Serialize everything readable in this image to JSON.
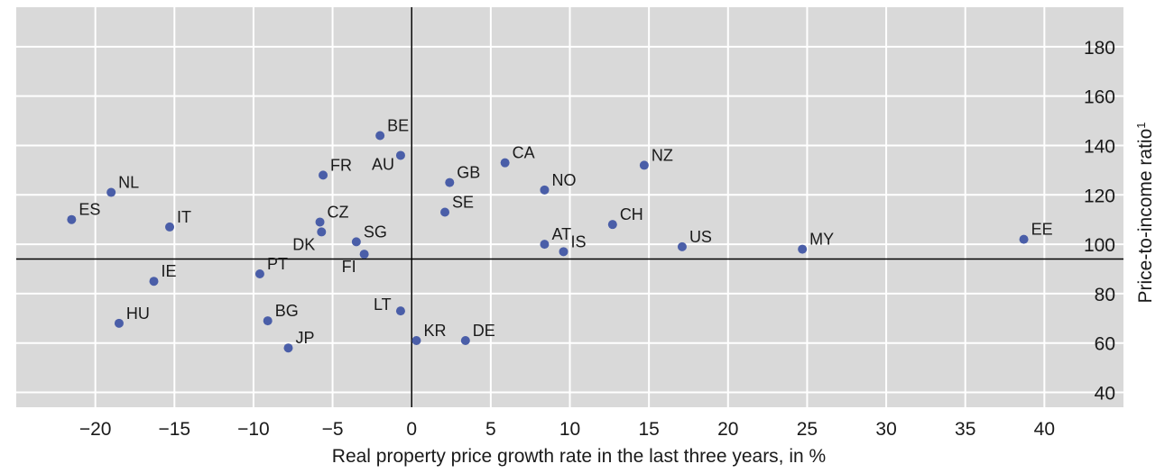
{
  "chart_data": {
    "type": "scatter",
    "title": "",
    "xlabel": "Real property price growth rate in the last three years, in %",
    "ylabel": "Price-to-income ratio",
    "ylabel_superscript": "1",
    "xlim": [
      -25,
      45
    ],
    "ylim": [
      34,
      196
    ],
    "xticks": [
      -20,
      -15,
      -10,
      -5,
      0,
      5,
      10,
      15,
      20,
      25,
      30,
      35,
      40
    ],
    "xtick_labels": [
      "−20",
      "−15",
      "−10",
      "−5",
      "0",
      "5",
      "10",
      "15",
      "20",
      "25",
      "30",
      "35",
      "40"
    ],
    "yticks": [
      40,
      60,
      80,
      100,
      120,
      140,
      160,
      180
    ],
    "ytick_labels": [
      "40",
      "60",
      "80",
      "100",
      "120",
      "140",
      "160",
      "180"
    ],
    "y_axis_position": "right",
    "crosshair": {
      "x": 0,
      "y": 94
    },
    "grid": true,
    "colors": {
      "background": "#d9d9d9",
      "grid": "#ffffff",
      "marker": "#4a5ea8",
      "axis": "#000000"
    },
    "points": [
      {
        "label": "ES",
        "x": -21.5,
        "y": 110
      },
      {
        "label": "NL",
        "x": -19.0,
        "y": 121
      },
      {
        "label": "HU",
        "x": -18.5,
        "y": 68
      },
      {
        "label": "IE",
        "x": -16.3,
        "y": 85
      },
      {
        "label": "IT",
        "x": -15.3,
        "y": 107
      },
      {
        "label": "PT",
        "x": -9.6,
        "y": 88
      },
      {
        "label": "BG",
        "x": -9.1,
        "y": 69
      },
      {
        "label": "JP",
        "x": -7.8,
        "y": 58
      },
      {
        "label": "FR",
        "x": -5.6,
        "y": 128
      },
      {
        "label": "CZ",
        "x": -5.8,
        "y": 109
      },
      {
        "label": "DK",
        "x": -5.7,
        "y": 105
      },
      {
        "label": "SG",
        "x": -3.5,
        "y": 101
      },
      {
        "label": "FI",
        "x": -3.0,
        "y": 96
      },
      {
        "label": "BE",
        "x": -2.0,
        "y": 144
      },
      {
        "label": "AU",
        "x": -0.7,
        "y": 136
      },
      {
        "label": "LT",
        "x": -0.7,
        "y": 73
      },
      {
        "label": "KR",
        "x": 0.3,
        "y": 61
      },
      {
        "label": "DE",
        "x": 3.4,
        "y": 61
      },
      {
        "label": "SE",
        "x": 2.1,
        "y": 113
      },
      {
        "label": "GB",
        "x": 2.4,
        "y": 125
      },
      {
        "label": "CA",
        "x": 5.9,
        "y": 133
      },
      {
        "label": "NO",
        "x": 8.4,
        "y": 122
      },
      {
        "label": "AT",
        "x": 8.4,
        "y": 100
      },
      {
        "label": "IS",
        "x": 9.6,
        "y": 97
      },
      {
        "label": "CH",
        "x": 12.7,
        "y": 108
      },
      {
        "label": "NZ",
        "x": 14.7,
        "y": 132
      },
      {
        "label": "US",
        "x": 17.1,
        "y": 99
      },
      {
        "label": "MY",
        "x": 24.7,
        "y": 98
      },
      {
        "label": "EE",
        "x": 38.7,
        "y": 102
      }
    ]
  }
}
